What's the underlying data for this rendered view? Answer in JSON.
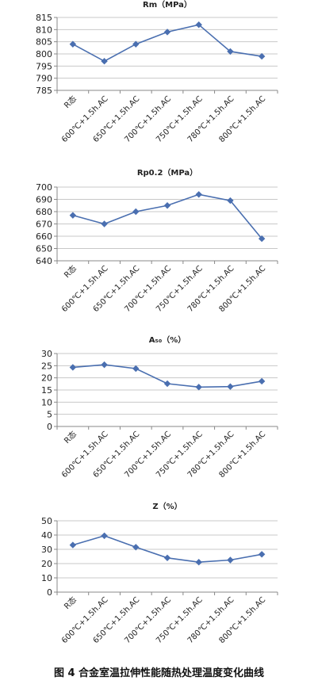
{
  "figure_caption": "图 4 合金室温拉伸性能随热处理温度变化曲线",
  "colors": {
    "series": "#4a6fb0",
    "grid": "#c8c8c8",
    "axis": "#888888",
    "text": "#222222"
  },
  "chart_data": [
    {
      "type": "line",
      "title": "Rm（MPa）",
      "categories": [
        "R态",
        "600℃+1.5h.AC",
        "650℃+1.5h.AC",
        "700℃+1.5h.AC",
        "750℃+1.5h.AC",
        "780℃+1.5h.AC",
        "800℃+1.5h.AC"
      ],
      "values": [
        804,
        797,
        804,
        809,
        812,
        801,
        799
      ],
      "ylim": [
        785,
        815
      ],
      "yticks": [
        "785",
        "790",
        "795",
        "800",
        "805",
        "810",
        "815"
      ],
      "grid": true
    },
    {
      "type": "line",
      "title": "Rp0.2（MPa）",
      "categories": [
        "R态",
        "600℃+1.5h.AC",
        "650℃+1.5h.AC",
        "700℃+1.5h.AC",
        "750℃+1.5h.AC",
        "780℃+1.5h.AC",
        "800℃+1.5h.AC"
      ],
      "values": [
        677,
        670,
        680,
        685,
        694,
        689,
        658
      ],
      "ylim": [
        640,
        700
      ],
      "yticks": [
        "640",
        "650",
        "660",
        "670",
        "680",
        "690",
        "700"
      ],
      "grid": true
    },
    {
      "type": "line",
      "title": "A₅₀（%）",
      "categories": [
        "R态",
        "600℃+1.5h.AC",
        "650℃+1.5h.AC",
        "700℃+1.5h.AC",
        "750℃+1.5h.AC",
        "780℃+1.5h.AC",
        "800℃+1.5h.AC"
      ],
      "values": [
        24.3,
        25.4,
        23.8,
        17.6,
        16.2,
        16.4,
        18.6
      ],
      "ylim": [
        0,
        30
      ],
      "yticks": [
        "0",
        "5",
        "10",
        "15",
        "20",
        "25",
        "30"
      ],
      "grid": true
    },
    {
      "type": "line",
      "title": "Z（%）",
      "categories": [
        "R态",
        "600℃+1.5h.AC",
        "650℃+1.5h.AC",
        "700℃+1.5h.AC",
        "750℃+1.5h.AC",
        "780℃+1.5h.AC",
        "800℃+1.5h.AC"
      ],
      "values": [
        33,
        39.5,
        31.5,
        24,
        21,
        22.5,
        26.5
      ],
      "ylim": [
        0,
        50
      ],
      "yticks": [
        "0",
        "10",
        "20",
        "30",
        "40",
        "50"
      ],
      "grid": true
    }
  ]
}
